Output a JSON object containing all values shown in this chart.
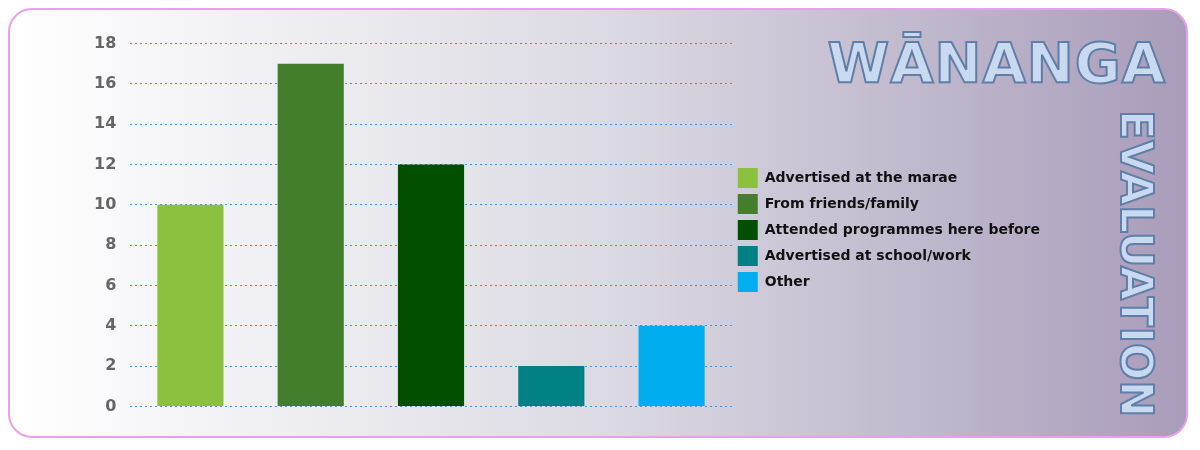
{
  "chart_data": {
    "type": "bar",
    "title": "WĀNANGA",
    "subtitle": "EVALUATION",
    "categories": [
      null,
      null,
      null,
      null,
      null
    ],
    "series": [
      {
        "name": "Advertised at the marae",
        "color": "#8cc13f",
        "values": [
          10,
          null,
          null,
          null,
          null
        ]
      },
      {
        "name": "From friends/family",
        "color": "#437e2c",
        "values": [
          null,
          17,
          null,
          null,
          null
        ]
      },
      {
        "name": "Attended programmes here before",
        "color": "#024f00",
        "values": [
          null,
          null,
          12,
          null,
          null
        ]
      },
      {
        "name": "Advertised at school/work",
        "color": "#018185",
        "values": [
          null,
          null,
          null,
          2,
          null
        ]
      },
      {
        "name": "Other",
        "color": "#00aeef",
        "values": [
          null,
          null,
          null,
          null,
          4
        ]
      }
    ],
    "ylim": [
      0,
      18
    ],
    "yticks": [
      0,
      2,
      4,
      6,
      8,
      10,
      12,
      14,
      16,
      18
    ],
    "grid": "y",
    "legend": "right",
    "tick_labels": "y"
  }
}
